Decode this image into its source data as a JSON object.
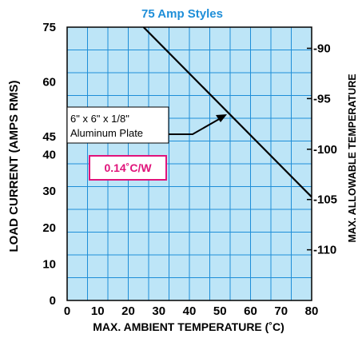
{
  "chart_data": {
    "type": "line",
    "title": "75 Amp Styles",
    "xlabel": "MAX. AMBIENT TEMPERATURE (˚C)",
    "ylabel": "LOAD CURRENT (AMPS RMS)",
    "y2label": "MAX. ALLOWABLE TEMPERATURE",
    "xlim": [
      0,
      80
    ],
    "ylim": [
      0,
      75
    ],
    "x_ticks": [
      "0",
      "10",
      "20",
      "30",
      "40",
      "50",
      "60",
      "70",
      "80"
    ],
    "x_tick_values": [
      0,
      10,
      20,
      30,
      40,
      50,
      60,
      70,
      80
    ],
    "y_ticks": [
      "0",
      "10",
      "20",
      "30",
      "40",
      "45",
      "60",
      "75"
    ],
    "y_tick_values": [
      0,
      10,
      20,
      30,
      40,
      45,
      60,
      75
    ],
    "y2_ticks": [
      "90",
      "95",
      "100",
      "105",
      "110"
    ],
    "y2_tick_values": [
      69.2,
      55.4,
      41.5,
      27.7,
      13.9
    ],
    "grid": true,
    "series": [
      {
        "name": "6\" x 6\" x 1/8\" Aluminum Plate",
        "x": [
          25,
          80
        ],
        "y": [
          75,
          28.4
        ]
      }
    ],
    "annotations": {
      "plate_line1": "6\" x 6\" x 1/8\"",
      "plate_line2": "Aluminum Plate",
      "resistance": "0.14˚C/W"
    },
    "colors": {
      "grid_fill": "#bde5f7",
      "grid_line": "#1e8ed8",
      "title": "#1e8ed8",
      "resistance_text": "#e0137a",
      "curve": "#000000"
    }
  }
}
